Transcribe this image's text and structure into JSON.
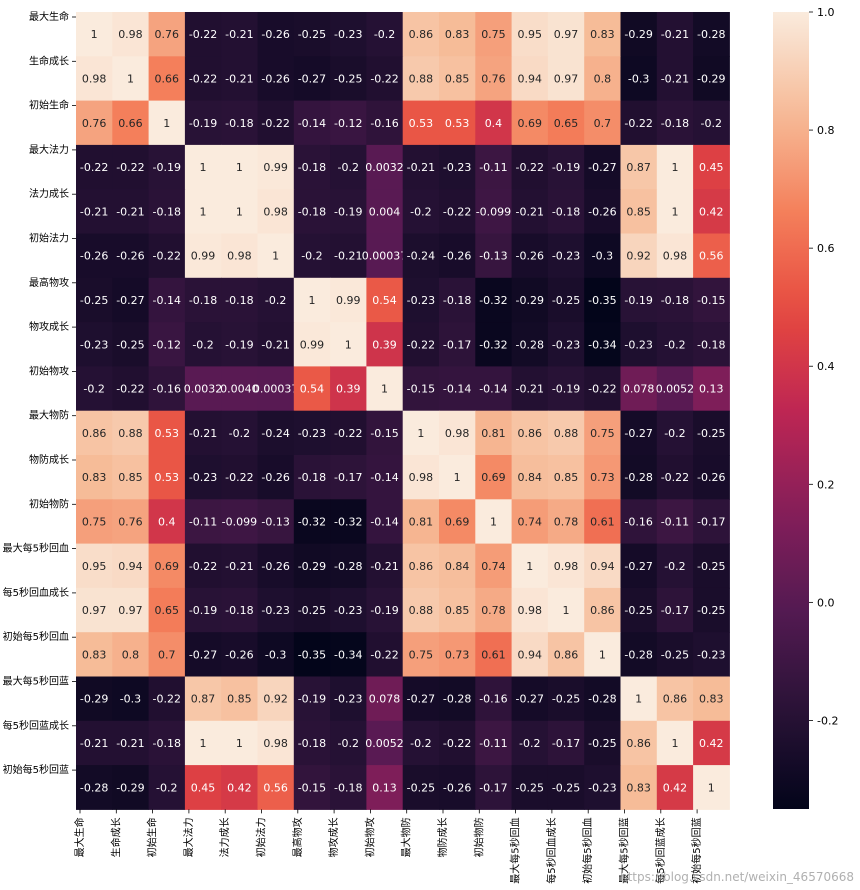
{
  "chart_data": {
    "type": "heatmap",
    "labels": [
      "最大生命",
      "生命成长",
      "初始生命",
      "最大法力",
      "法力成长",
      "初始法力",
      "最高物攻",
      "物攻成长",
      "初始物攻",
      "最大物防",
      "物防成长",
      "初始物防",
      "最大每5秒回血",
      "每5秒回血成长",
      "初始每5秒回血",
      "最大每5秒回蓝",
      "每5秒回蓝成长",
      "初始每5秒回蓝"
    ],
    "values": [
      [
        "1",
        "0.98",
        "0.76",
        "-0.22",
        "-0.21",
        "-0.26",
        "-0.25",
        "-0.23",
        "-0.2",
        "0.86",
        "0.83",
        "0.75",
        "0.95",
        "0.97",
        "0.83",
        "-0.29",
        "-0.21",
        "-0.28"
      ],
      [
        "0.98",
        "1",
        "0.66",
        "-0.22",
        "-0.21",
        "-0.26",
        "-0.27",
        "-0.25",
        "-0.22",
        "0.88",
        "0.85",
        "0.76",
        "0.94",
        "0.97",
        "0.8",
        "-0.3",
        "-0.21",
        "-0.29"
      ],
      [
        "0.76",
        "0.66",
        "1",
        "-0.19",
        "-0.18",
        "-0.22",
        "-0.14",
        "-0.12",
        "-0.16",
        "0.53",
        "0.53",
        "0.4",
        "0.69",
        "0.65",
        "0.7",
        "-0.22",
        "-0.18",
        "-0.2"
      ],
      [
        "-0.22",
        "-0.22",
        "-0.19",
        "1",
        "1",
        "0.99",
        "-0.18",
        "-0.2",
        "0.0032",
        "-0.21",
        "-0.23",
        "-0.11",
        "-0.22",
        "-0.19",
        "-0.27",
        "0.87",
        "1",
        "0.45"
      ],
      [
        "-0.21",
        "-0.21",
        "-0.18",
        "1",
        "1",
        "0.98",
        "-0.18",
        "-0.19",
        "0.004",
        "-0.2",
        "-0.22",
        "-0.099",
        "-0.21",
        "-0.18",
        "-0.26",
        "0.85",
        "1",
        "0.42"
      ],
      [
        "-0.26",
        "-0.26",
        "-0.22",
        "0.99",
        "0.98",
        "1",
        "-0.2",
        "-0.21",
        "0.00037",
        "-0.24",
        "-0.26",
        "-0.13",
        "-0.26",
        "-0.23",
        "-0.3",
        "0.92",
        "0.98",
        "0.56"
      ],
      [
        "-0.25",
        "-0.27",
        "-0.14",
        "-0.18",
        "-0.18",
        "-0.2",
        "1",
        "0.99",
        "0.54",
        "-0.23",
        "-0.18",
        "-0.32",
        "-0.29",
        "-0.25",
        "-0.35",
        "-0.19",
        "-0.18",
        "-0.15"
      ],
      [
        "-0.23",
        "-0.25",
        "-0.12",
        "-0.2",
        "-0.19",
        "-0.21",
        "0.99",
        "1",
        "0.39",
        "-0.22",
        "-0.17",
        "-0.32",
        "-0.28",
        "-0.23",
        "-0.34",
        "-0.23",
        "-0.2",
        "-0.18"
      ],
      [
        "-0.2",
        "-0.22",
        "-0.16",
        "0.0032",
        "0.0040",
        "0.00037",
        "0.54",
        "0.39",
        "1",
        "-0.15",
        "-0.14",
        "-0.14",
        "-0.21",
        "-0.19",
        "-0.22",
        "0.078",
        "0.0052",
        "0.13"
      ],
      [
        "0.86",
        "0.88",
        "0.53",
        "-0.21",
        "-0.2",
        "-0.24",
        "-0.23",
        "-0.22",
        "-0.15",
        "1",
        "0.98",
        "0.81",
        "0.86",
        "0.88",
        "0.75",
        "-0.27",
        "-0.2",
        "-0.25"
      ],
      [
        "0.83",
        "0.85",
        "0.53",
        "-0.23",
        "-0.22",
        "-0.26",
        "-0.18",
        "-0.17",
        "-0.14",
        "0.98",
        "1",
        "0.69",
        "0.84",
        "0.85",
        "0.73",
        "-0.28",
        "-0.22",
        "-0.26"
      ],
      [
        "0.75",
        "0.76",
        "0.4",
        "-0.11",
        "-0.099",
        "-0.13",
        "-0.32",
        "-0.32",
        "-0.14",
        "0.81",
        "0.69",
        "1",
        "0.74",
        "0.78",
        "0.61",
        "-0.16",
        "-0.11",
        "-0.17"
      ],
      [
        "0.95",
        "0.94",
        "0.69",
        "-0.22",
        "-0.21",
        "-0.26",
        "-0.29",
        "-0.28",
        "-0.21",
        "0.86",
        "0.84",
        "0.74",
        "1",
        "0.98",
        "0.94",
        "-0.27",
        "-0.2",
        "-0.25"
      ],
      [
        "0.97",
        "0.97",
        "0.65",
        "-0.19",
        "-0.18",
        "-0.23",
        "-0.25",
        "-0.23",
        "-0.19",
        "0.88",
        "0.85",
        "0.78",
        "0.98",
        "1",
        "0.86",
        "-0.25",
        "-0.17",
        "-0.25"
      ],
      [
        "0.83",
        "0.8",
        "0.7",
        "-0.27",
        "-0.26",
        "-0.3",
        "-0.35",
        "-0.34",
        "-0.22",
        "0.75",
        "0.73",
        "0.61",
        "0.94",
        "0.86",
        "1",
        "-0.28",
        "-0.25",
        "-0.23"
      ],
      [
        "-0.29",
        "-0.3",
        "-0.22",
        "0.87",
        "0.85",
        "0.92",
        "-0.19",
        "-0.23",
        "0.078",
        "-0.27",
        "-0.28",
        "-0.16",
        "-0.27",
        "-0.25",
        "-0.28",
        "1",
        "0.86",
        "0.83"
      ],
      [
        "-0.21",
        "-0.21",
        "-0.18",
        "1",
        "1",
        "0.98",
        "-0.18",
        "-0.2",
        "0.0052",
        "-0.2",
        "-0.22",
        "-0.11",
        "-0.2",
        "-0.17",
        "-0.25",
        "0.86",
        "1",
        "0.42"
      ],
      [
        "-0.28",
        "-0.29",
        "-0.2",
        "0.45",
        "0.42",
        "0.56",
        "-0.15",
        "-0.18",
        "0.13",
        "-0.25",
        "-0.26",
        "-0.17",
        "-0.25",
        "-0.25",
        "-0.23",
        "0.83",
        "0.42",
        "1"
      ]
    ],
    "vmin": -0.35,
    "vmax": 1.0,
    "colorbar_ticks": [
      "1.0",
      "0.8",
      "0.6",
      "0.4",
      "0.2",
      "0.0",
      "-0.2"
    ],
    "colormap": "rocket"
  },
  "watermark": "https://blog.csdn.net/weixin_46570668"
}
